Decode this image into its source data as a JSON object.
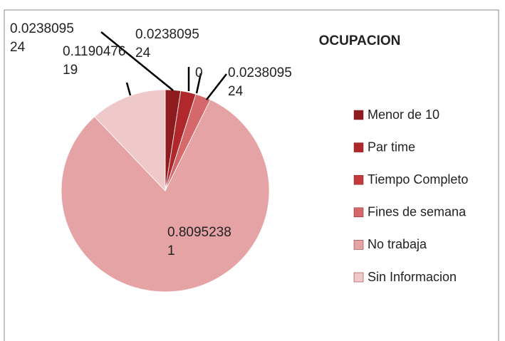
{
  "chart_data": {
    "type": "pie",
    "title": "OCUPACION",
    "categories": [
      "Menor de 10",
      "Par time",
      "Tiempo Completo",
      "Fines de semana",
      "No trabaja",
      "Sin Informacion"
    ],
    "values": [
      0.023809524,
      0.023809524,
      0,
      0.023809524,
      0.80952381,
      0.119047619
    ],
    "colors": [
      "#8e1c1e",
      "#b0282b",
      "#c23a3c",
      "#d4686b",
      "#e6a3a5",
      "#efc9c9"
    ],
    "legend": "right"
  }
}
